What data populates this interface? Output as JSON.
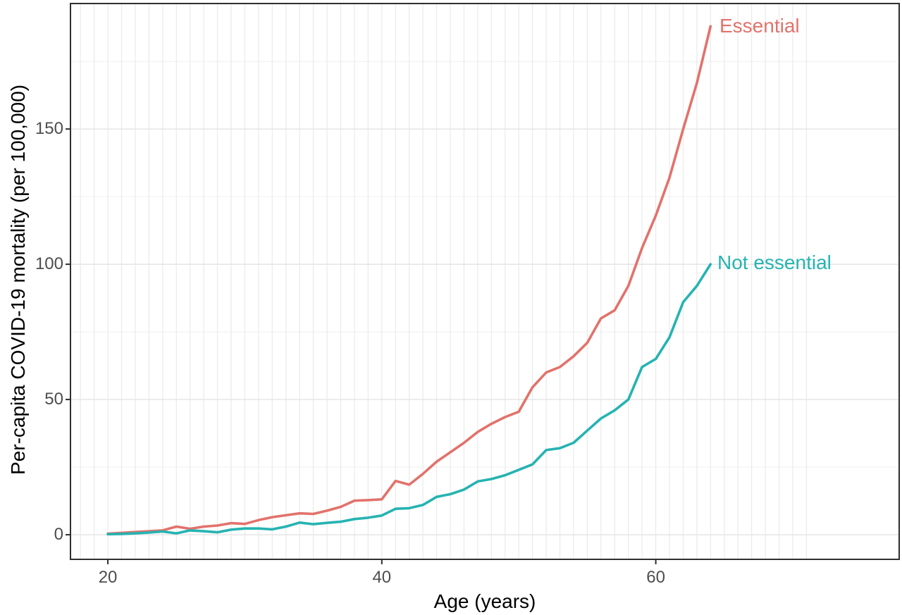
{
  "chart_data": {
    "type": "line",
    "title": "",
    "xlabel": "Age (years)",
    "ylabel": "Per-capita COVID-19 mortality (per 100,000)",
    "x_ticks": [
      20,
      40,
      60
    ],
    "y_ticks": [
      0,
      50,
      100,
      150
    ],
    "y_minor_gridlines": [
      25,
      75,
      125,
      175
    ],
    "x_gridlines": {
      "start": 18,
      "end": 71,
      "step": 1
    },
    "xlim": [
      17.27,
      77.77
    ],
    "ylim": [
      -9.1,
      196.4
    ],
    "grid": "on",
    "legend_position": "direct line labels at right end of each line",
    "x": [
      20,
      21,
      22,
      23,
      24,
      25,
      26,
      27,
      28,
      29,
      30,
      31,
      32,
      33,
      34,
      35,
      36,
      37,
      38,
      39,
      40,
      41,
      42,
      43,
      44,
      45,
      46,
      47,
      48,
      49,
      50,
      51,
      52,
      53,
      54,
      55,
      56,
      57,
      58,
      59,
      60,
      61,
      62,
      63,
      64
    ],
    "series": [
      {
        "name": "Essential",
        "color": "#E2726B",
        "values": [
          0.4,
          0.7,
          1.0,
          1.3,
          1.6,
          3.0,
          2.2,
          3.0,
          3.4,
          4.3,
          4.0,
          5.4,
          6.5,
          7.2,
          7.9,
          7.7,
          8.9,
          10.3,
          12.6,
          12.8,
          13.1,
          19.9,
          18.5,
          22.5,
          27.0,
          30.5,
          34.0,
          38.0,
          41.0,
          43.5,
          45.5,
          54.5,
          60.0,
          62.0,
          66.0,
          71.0,
          80.0,
          83.0,
          92.0,
          106.0,
          118.0,
          132.0,
          150.0,
          167.0,
          188.0
        ]
      },
      {
        "name": "Not essential",
        "color": "#26B3B2",
        "values": [
          0.2,
          0.3,
          0.5,
          0.8,
          1.2,
          0.5,
          1.6,
          1.3,
          0.9,
          1.9,
          2.3,
          2.3,
          2.0,
          3.0,
          4.5,
          3.9,
          4.4,
          4.8,
          5.8,
          6.3,
          7.1,
          9.6,
          9.8,
          11.0,
          14.0,
          15.0,
          16.7,
          19.7,
          20.6,
          22.0,
          24.0,
          26.0,
          31.3,
          32.0,
          34.0,
          38.5,
          43.0,
          46.0,
          50.0,
          62.0,
          65.0,
          73.0,
          86.0,
          92.0,
          100.0
        ]
      }
    ]
  },
  "style_colors": {
    "panel_border": "#2f2f2f",
    "tick_mark": "#2f2f2f",
    "tick_label": "#4d4d4d",
    "major_gridline": "#e3e3e3",
    "minor_gridline": "#f1f1f1",
    "vertical_gridline": "#eaeaea",
    "background": "#ffffff"
  }
}
